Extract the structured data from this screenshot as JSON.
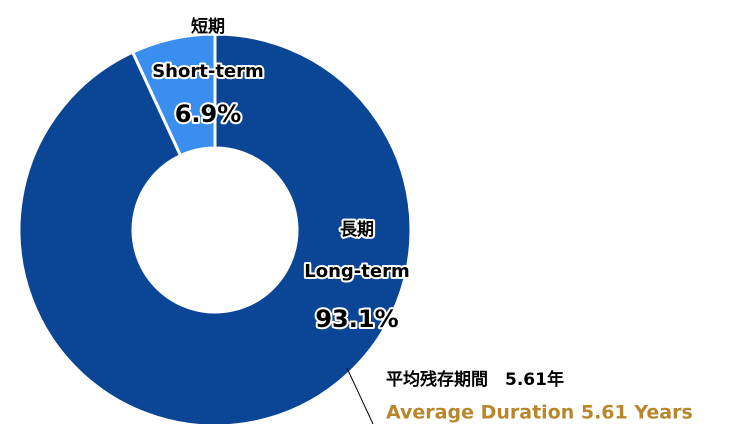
{
  "chart_data": {
    "type": "donut",
    "categories": [
      "短期",
      "長期"
    ],
    "categories_en": [
      "Short-term",
      "Long-term"
    ],
    "values": [
      6.9,
      93.1
    ],
    "value_labels": [
      "6.9%",
      "93.1%"
    ],
    "colors": [
      "#3a8ef0",
      "#0b4596"
    ],
    "annotation": {
      "line1": "平均残存期間　5.61年",
      "line2": "Average Duration 5.61 Years"
    }
  }
}
